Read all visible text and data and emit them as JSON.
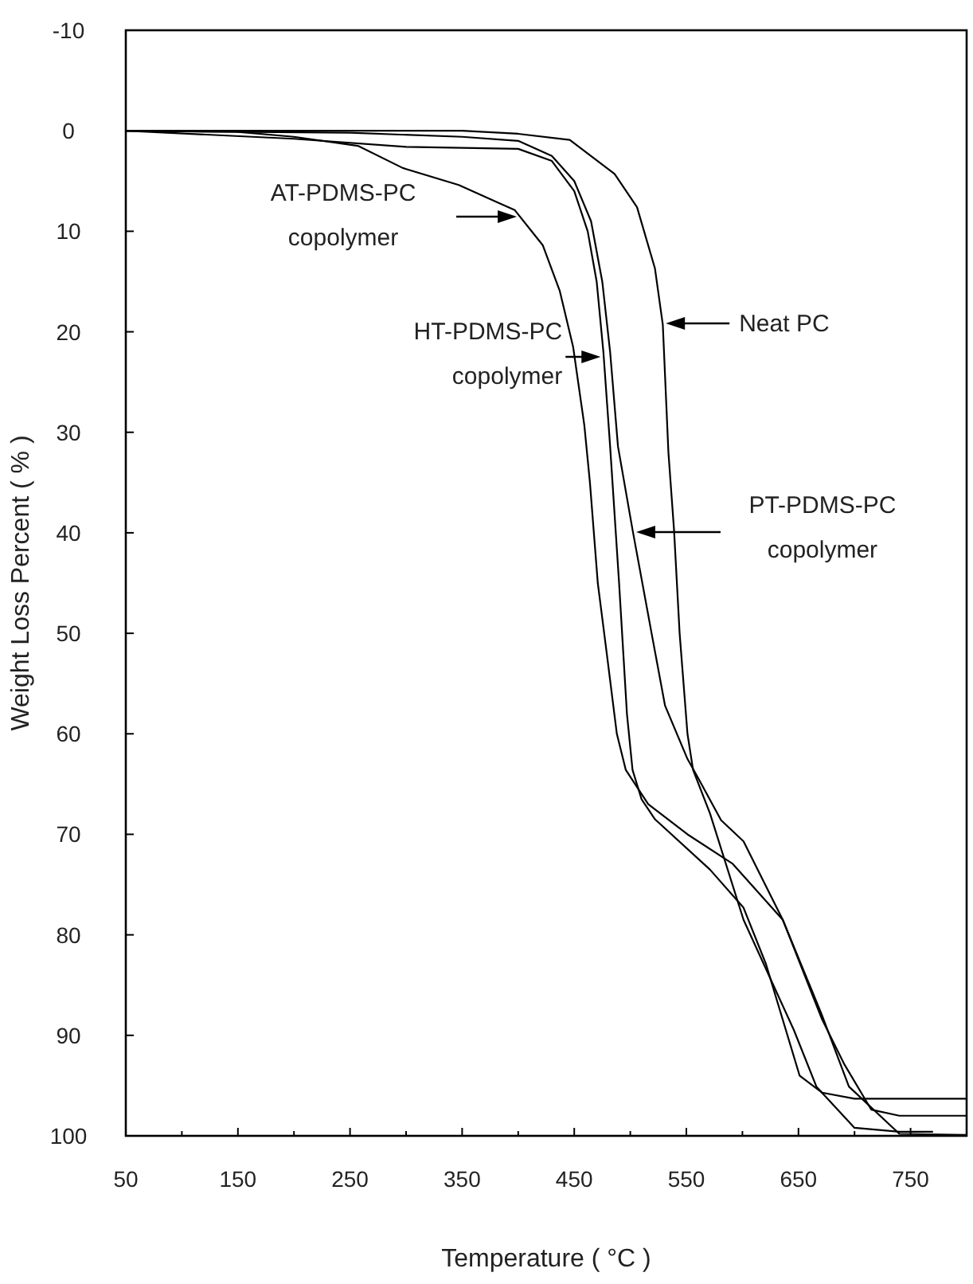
{
  "chart_data": {
    "type": "line",
    "xlabel": "Temperature ( °C )",
    "ylabel": "Weight Loss Percent ( % )",
    "xlim": [
      50,
      800
    ],
    "ylim": [
      100,
      -10
    ],
    "xticks": [
      50,
      {
        "value": 100,
        "label": null
      },
      150,
      {
        "value": 200,
        "label": null
      },
      250,
      {
        "value": 300,
        "label": null
      },
      350,
      {
        "value": 400,
        "label": null
      },
      450,
      {
        "value": 500,
        "label": null
      },
      550,
      {
        "value": 600,
        "label": null
      },
      650,
      {
        "value": 700,
        "label": null
      },
      750
    ],
    "yticks": [
      -10,
      0,
      10,
      20,
      30,
      40,
      50,
      60,
      70,
      80,
      90,
      100
    ],
    "grid": false,
    "marker": "none",
    "line_style": "solid",
    "series": [
      {
        "color": "#000000",
        "x": [
          50,
          148,
          200,
          257,
          297,
          347,
          397,
          422,
          437,
          449,
          459,
          464,
          471,
          479,
          488,
          496,
          516,
          551,
          591,
          636,
          671,
          691,
          715,
          740,
          800
        ],
        "values": [
          0,
          0.1,
          0.6,
          1.5,
          3.7,
          5.4,
          7.9,
          11.4,
          15.9,
          21.5,
          29.3,
          35,
          45,
          52,
          60,
          63.6,
          67,
          70,
          72.9,
          78.5,
          88.4,
          92.9,
          97.4,
          98,
          98
        ]
      },
      {
        "color": "#000000",
        "x": [
          50,
          200,
          300,
          400,
          430,
          450,
          462,
          470,
          476,
          482,
          490,
          497,
          502,
          510,
          522,
          571,
          601,
          621,
          651,
          671,
          700,
          800
        ],
        "values": [
          0,
          0.8,
          1.6,
          1.8,
          3,
          6,
          10,
          15,
          22,
          31.4,
          45,
          58,
          63.6,
          66.5,
          68.5,
          73.5,
          77.3,
          82.9,
          94,
          95.7,
          96.3,
          96.3
        ]
      },
      {
        "color": "#000000",
        "x": [
          50,
          250,
          350,
          400,
          430,
          450,
          465,
          475,
          482,
          489,
          502,
          519,
          531,
          551,
          561,
          581,
          601,
          636,
          671,
          695,
          740,
          800
        ],
        "values": [
          0,
          0.2,
          0.6,
          1,
          2.5,
          5,
          9,
          15,
          22,
          31.4,
          39.7,
          50,
          57.2,
          62.5,
          64.5,
          68.6,
          70.7,
          78.5,
          88,
          95.1,
          99.8,
          99.9
        ]
      },
      {
        "color": "#000000",
        "x": [
          50,
          350,
          400,
          446,
          486,
          506,
          522,
          529,
          534,
          539,
          544,
          551,
          556,
          571,
          601,
          646,
          666,
          700,
          740,
          770
        ],
        "values": [
          0,
          0,
          0.3,
          0.9,
          4.3,
          7.6,
          13.7,
          19.3,
          32,
          39.7,
          50,
          60,
          63.6,
          67.9,
          78.5,
          89.5,
          95.1,
          99.2,
          99.6,
          99.6
        ]
      }
    ],
    "annotations": [
      "AT-PDMS-PC\ncopolymer",
      "HT-PDMS-PC\ncopolymer",
      "PT-PDMS-PC\ncopolymer",
      "Neat  PC"
    ]
  }
}
